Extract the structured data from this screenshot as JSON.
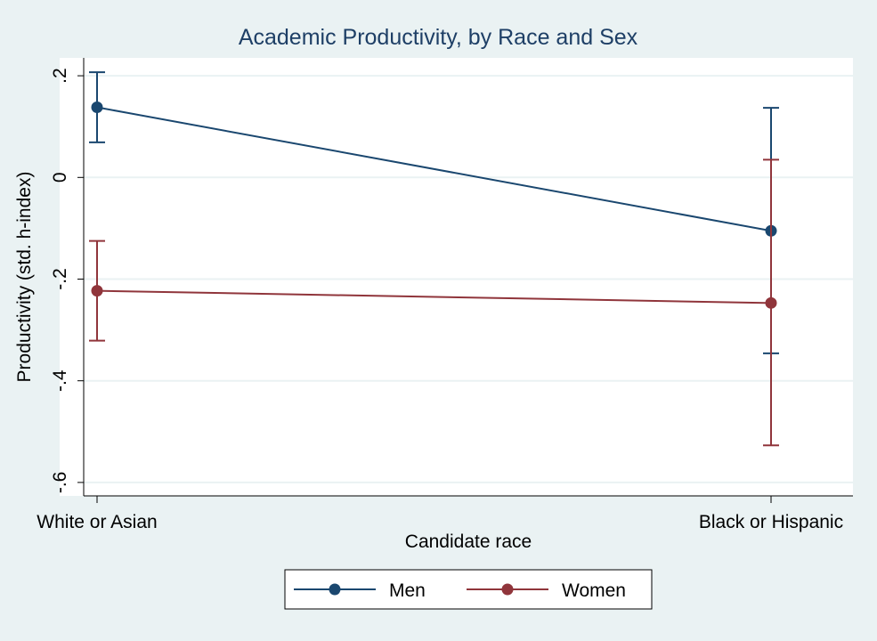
{
  "chart_data": {
    "type": "line",
    "title": "Academic Productivity, by Race and Sex",
    "xlabel": "Candidate race",
    "ylabel": "Productivity (std. h-index)",
    "categories": [
      "White or Asian",
      "Black or Hispanic"
    ],
    "ylim": [
      -0.6,
      0.2
    ],
    "yticks": [
      0.2,
      0,
      -0.2,
      -0.4,
      -0.6
    ],
    "ytick_labels": [
      ".2",
      "0",
      "-.2",
      "-.4",
      "-.6"
    ],
    "grid": true,
    "legend_position": "bottom",
    "series": [
      {
        "name": "Men",
        "color": "#1a476f",
        "values": [
          0.138,
          -0.105
        ],
        "ci_low": [
          0.069,
          -0.346
        ],
        "ci_high": [
          0.207,
          0.137
        ]
      },
      {
        "name": "Women",
        "color": "#90353b",
        "values": [
          -0.223,
          -0.247
        ],
        "ci_low": [
          -0.321,
          -0.527
        ],
        "ci_high": [
          -0.125,
          0.035
        ]
      }
    ]
  }
}
